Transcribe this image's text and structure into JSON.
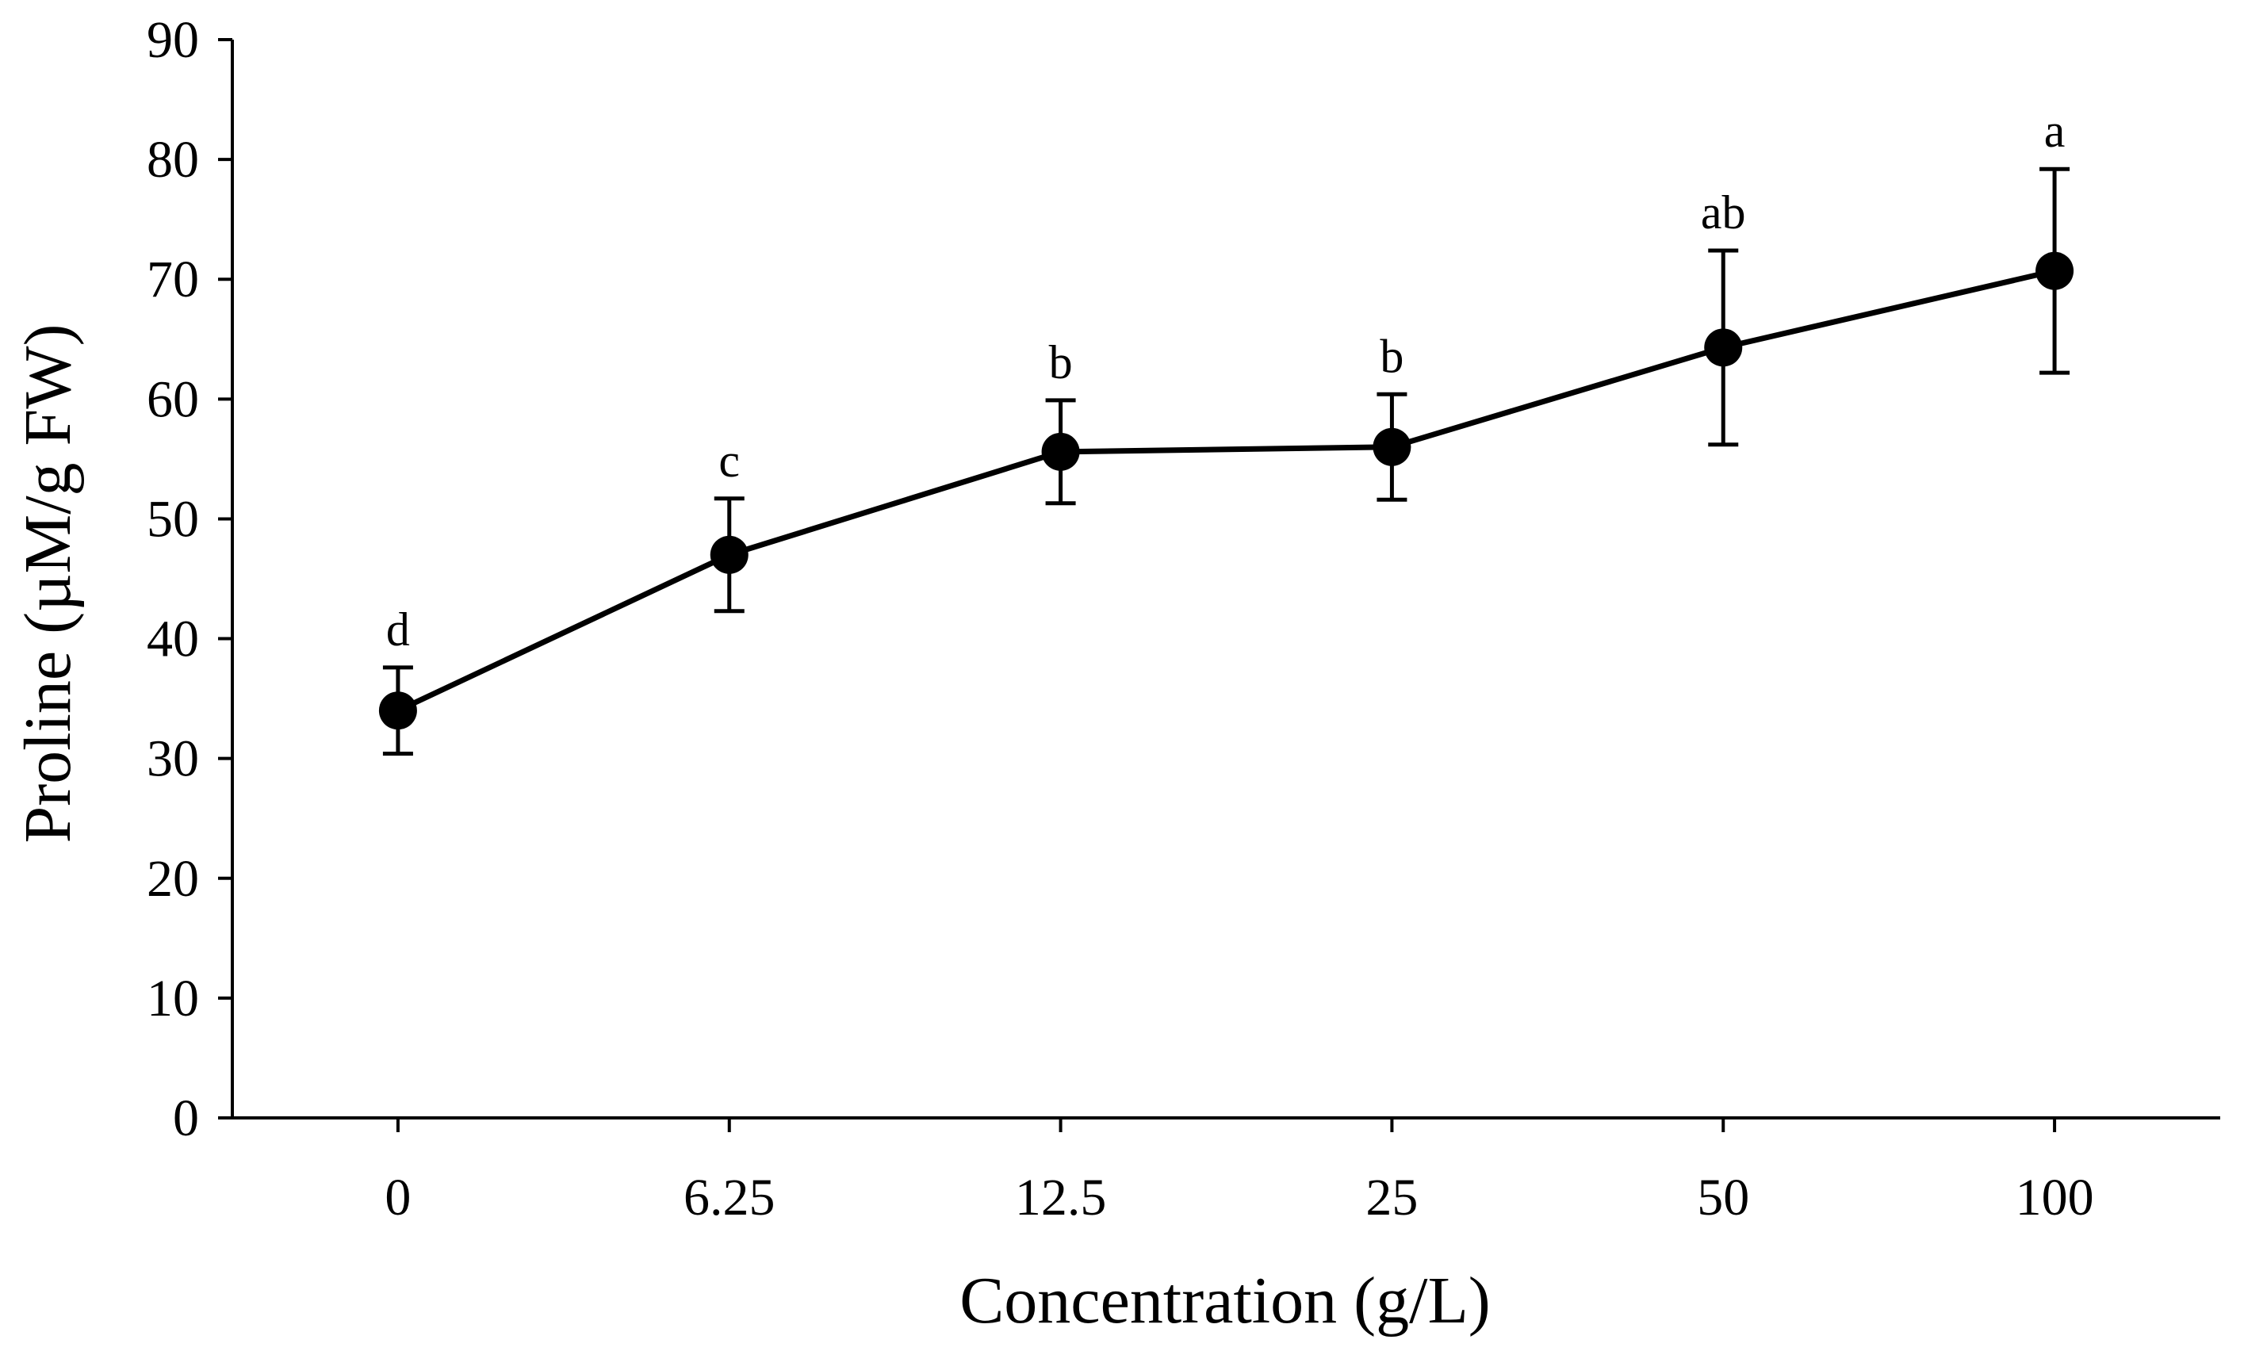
{
  "chart_data": {
    "type": "line",
    "title": "",
    "xlabel": "Concentration (g/L)",
    "ylabel": "Proline (µM/g FW)",
    "ylim": [
      0,
      90
    ],
    "yticks": [
      "0",
      "10",
      "20",
      "30",
      "40",
      "50",
      "60",
      "70",
      "80",
      "90"
    ],
    "grid": false,
    "categories": [
      "0",
      "6.25",
      "12.5",
      "25",
      "50",
      "100"
    ],
    "series": [
      {
        "name": "Proline",
        "values": [
          34.0,
          47.0,
          55.6,
          56.0,
          64.3,
          70.7
        ],
        "error": [
          3.6,
          4.7,
          4.3,
          4.4,
          8.1,
          8.5
        ],
        "significance": [
          "d",
          "c",
          "b",
          "b",
          "ab",
          "a"
        ]
      }
    ],
    "colors": {
      "line": "#000000",
      "marker": "#000000",
      "axis": "#000000"
    }
  }
}
